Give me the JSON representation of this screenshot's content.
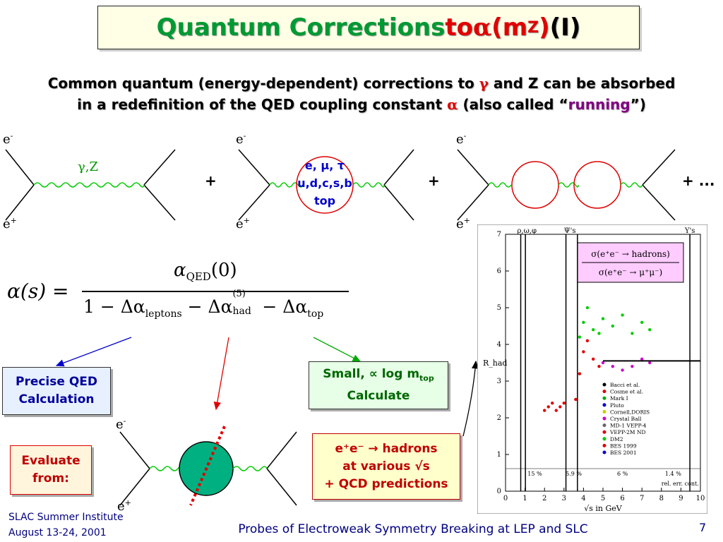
{
  "title": {
    "part1": "Quantum Corrections ",
    "part2": "to ",
    "alpha": "α",
    "part3": "(m",
    "sub": "Z",
    "part4": ")",
    "part5": " (I)"
  },
  "subtitle": {
    "line1_a": "Common quantum (energy-dependent) corrections to ",
    "gamma": "γ",
    "line1_b": " and Z can be absorbed",
    "line2_a": "in a redefinition of the QED coupling constant ",
    "alpha": "α",
    "line2_b": " (also called “",
    "running": "running",
    "line2_c": "”)"
  },
  "diagrams": {
    "e_minus": "e",
    "e_plus": "e",
    "minus_sup": "-",
    "plus_sup": "+",
    "gz_label": "γ,Z",
    "loop_line1": "e, μ, τ",
    "loop_line2": "u,d,c,s,b",
    "loop_line3": "top",
    "plus1": "+",
    "plus2": "+",
    "plus3": "+ ..."
  },
  "formula": {
    "lhs": "α(s) =",
    "numerator": "α",
    "numerator_sub": "QED",
    "numerator_arg": "(0)",
    "denominator_a": "1 − Δα",
    "sub_leptons": "leptons",
    "denominator_b": " − Δα",
    "sup_five": "(5)",
    "sub_had": "had",
    "denominator_c": " − Δα",
    "sub_top": "top"
  },
  "boxes": {
    "qed_line1": "Precise QED",
    "qed_line2": "Calculation",
    "small_line1": "Small, ∝ log m",
    "small_sub": "top",
    "small_line2": "Calculate",
    "evaluate_line1": "Evaluate",
    "evaluate_line2": "from:",
    "hadrons_line1": "e⁺e⁻ → hadrons",
    "hadrons_line2": "at various √s",
    "hadrons_line3": "+ QCD predictions"
  },
  "footer": {
    "left_line1": "SLAC Summer Institute",
    "left_line2": "August 13-24, 2001",
    "center": "Probes of Electroweak Symmetry Breaking at LEP and SLC",
    "page": "7"
  },
  "chart_data": {
    "type": "scatter",
    "ylabel": "R_had",
    "xlabel": "√s in GeV",
    "xlim": [
      0,
      10
    ],
    "ylim": [
      0,
      7
    ],
    "x_ticks": [
      "0",
      "1",
      "2",
      "3",
      "4",
      "5",
      "6",
      "7",
      "8",
      "9",
      "10"
    ],
    "y_ticks": [
      "0",
      "1",
      "2",
      "3",
      "4",
      "5",
      "6",
      "7"
    ],
    "resonance_labels": [
      "ρ,ω,φ",
      "Ψ's",
      "Υ's"
    ],
    "ratio_numerator": "σ(e⁺e⁻ → hadrons)",
    "ratio_denominator": "σ(e⁺e⁻ → μ⁺μ⁻)",
    "legend": [
      "Bacci et al.",
      "Cosme et al.",
      "Mark I",
      "Pluto",
      "Cornell,DORIS",
      "Crystal Ball",
      "MD-1 VEPP-4",
      "VEPP-2M ND",
      "DM2",
      "BES 1999",
      "BES 2001"
    ],
    "error_labels": [
      "15 %",
      "5.9 %",
      "6 %",
      "1.4 %"
    ],
    "error_caption": "rel. err. cont.",
    "series": [
      {
        "name": "Mark I",
        "x": [
          3.8,
          4.0,
          4.2,
          4.5,
          4.8,
          5.0,
          5.5,
          6.0,
          6.5,
          7.0,
          7.4
        ],
        "y": [
          4.2,
          4.6,
          5.0,
          4.4,
          4.3,
          4.7,
          4.5,
          4.8,
          4.3,
          4.6,
          4.4
        ]
      },
      {
        "name": "BES 1999",
        "x": [
          2.0,
          2.2,
          2.4,
          2.6,
          2.8,
          3.0,
          3.6,
          3.8,
          4.0,
          4.2,
          4.5,
          4.8
        ],
        "y": [
          2.2,
          2.3,
          2.4,
          2.2,
          2.3,
          2.4,
          2.5,
          3.2,
          3.8,
          4.1,
          3.6,
          3.4
        ]
      },
      {
        "name": "Crystal Ball",
        "x": [
          5.0,
          5.5,
          6.0,
          6.5,
          7.0,
          7.4
        ],
        "y": [
          3.5,
          3.4,
          3.3,
          3.4,
          3.6,
          3.5
        ]
      }
    ]
  }
}
